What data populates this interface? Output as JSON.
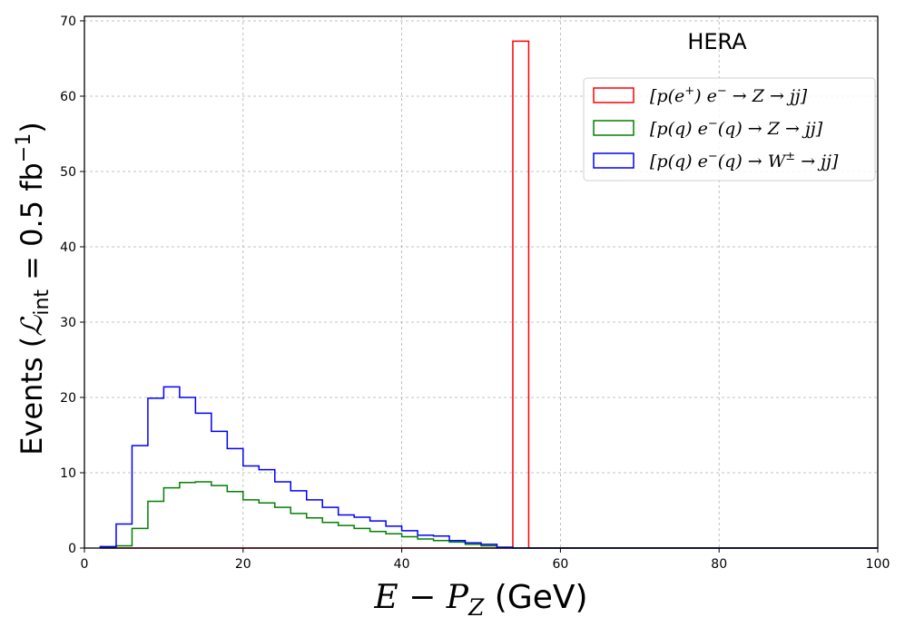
{
  "chart_data": {
    "type": "histogram-step",
    "annotation": "HERA",
    "xlabel": "E − P",
    "xlabel_sub": "Z",
    "xlabel_unit": " (GeV)",
    "ylabel_pre": "Events (",
    "ylabel_L": "ℒ",
    "ylabel_sub": "int",
    "ylabel_mid": " = 0.5 fb",
    "ylabel_sup": "−1",
    "ylabel_post": ")",
    "xlim": [
      0,
      100
    ],
    "ylim": [
      0,
      70.6
    ],
    "xticks": [
      "0",
      "20",
      "40",
      "60",
      "80",
      "100"
    ],
    "xtick_values": [
      0,
      20,
      40,
      60,
      80,
      100
    ],
    "yticks": [
      "0",
      "10",
      "20",
      "30",
      "40",
      "50",
      "60",
      "70"
    ],
    "ytick_values": [
      0,
      10,
      20,
      30,
      40,
      50,
      60,
      70
    ],
    "grid": true,
    "legend_position": "top-right",
    "bin_edges": [
      2,
      4,
      6,
      8,
      10,
      12,
      14,
      16,
      18,
      20,
      22,
      24,
      26,
      28,
      30,
      32,
      34,
      36,
      38,
      40,
      42,
      44,
      46,
      48,
      50,
      52,
      54,
      56,
      58,
      60,
      62,
      64,
      66,
      68,
      70,
      72,
      74,
      76,
      78,
      80,
      82,
      84,
      86,
      88,
      90,
      92,
      94,
      96,
      98,
      100
    ],
    "series": [
      {
        "name": "[p(e⁺) e⁻ → Z → jj]",
        "color": "#ff0000",
        "values": [
          0,
          0,
          0,
          0,
          0,
          0,
          0,
          0,
          0,
          0,
          0,
          0,
          0,
          0,
          0,
          0,
          0,
          0,
          0,
          0,
          0,
          0,
          0,
          0,
          0,
          0,
          67.3,
          0,
          0,
          0,
          0,
          0,
          0,
          0,
          0,
          0,
          0,
          0,
          0,
          0,
          0,
          0,
          0,
          0,
          0,
          0,
          0,
          0,
          0
        ]
      },
      {
        "name": "[p(q) e⁻(q) → Z → jj]",
        "color": "#008000",
        "values": [
          0.1,
          0.3,
          2.6,
          6.2,
          8.0,
          8.7,
          8.8,
          8.3,
          7.5,
          6.4,
          6.0,
          5.4,
          4.6,
          4.0,
          3.4,
          3.0,
          2.6,
          2.2,
          1.9,
          1.5,
          1.2,
          1.0,
          0.8,
          0.5,
          0.3,
          0.1,
          0,
          0,
          0,
          0,
          0,
          0,
          0,
          0,
          0,
          0,
          0,
          0,
          0,
          0,
          0,
          0,
          0,
          0,
          0,
          0,
          0,
          0,
          0
        ]
      },
      {
        "name": "[p(q) e⁻(q) → W± → jj]",
        "color": "#0000ff",
        "values": [
          0.2,
          3.2,
          13.6,
          19.9,
          21.4,
          20.0,
          17.9,
          15.5,
          13.2,
          10.9,
          10.4,
          8.8,
          7.6,
          6.4,
          5.4,
          4.4,
          4.1,
          3.6,
          2.9,
          2.3,
          1.7,
          1.6,
          1.0,
          0.7,
          0.5,
          0.1,
          0,
          0,
          0,
          0,
          0,
          0,
          0,
          0,
          0,
          0,
          0,
          0,
          0,
          0,
          0,
          0,
          0,
          0,
          0,
          0,
          0,
          0,
          0
        ]
      }
    ],
    "legend": [
      {
        "open": "[p(e",
        "sup": "+",
        "mid": ") e",
        "sup2": "−",
        "rest": " → Z → jj]"
      },
      {
        "open": "[p(q) e",
        "sup": "−",
        "mid": "(q) → Z → jj]",
        "sup2": "",
        "rest": ""
      },
      {
        "open": "[p(q) e",
        "sup": "−",
        "mid": "(q) → W",
        "sup2": "±",
        "rest": " → jj]"
      }
    ]
  }
}
